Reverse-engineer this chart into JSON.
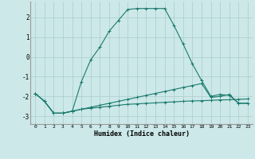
{
  "xlabel": "Humidex (Indice chaleur)",
  "background_color": "#cce8e8",
  "grid_color": "#aacccc",
  "line_color": "#1a7a6e",
  "x_ticks": [
    0,
    1,
    2,
    3,
    4,
    5,
    6,
    7,
    8,
    9,
    10,
    11,
    12,
    13,
    14,
    15,
    16,
    17,
    18,
    19,
    20,
    21,
    22,
    23
  ],
  "xlim": [
    -0.5,
    23.5
  ],
  "ylim": [
    -3.4,
    2.8
  ],
  "series1_x": [
    0,
    1,
    2,
    3,
    4,
    5,
    6,
    7,
    8,
    9,
    10,
    11,
    12,
    13,
    14,
    15,
    16,
    17,
    18,
    19,
    20,
    21,
    22,
    23
  ],
  "series1_y": [
    -1.85,
    -2.25,
    -2.85,
    -2.85,
    -2.75,
    -2.65,
    -2.6,
    -2.55,
    -2.5,
    -2.45,
    -2.4,
    -2.38,
    -2.35,
    -2.33,
    -2.3,
    -2.28,
    -2.25,
    -2.23,
    -2.22,
    -2.2,
    -2.18,
    -2.17,
    -2.15,
    -2.13
  ],
  "series2_x": [
    0,
    1,
    2,
    3,
    4,
    5,
    6,
    7,
    8,
    9,
    10,
    11,
    12,
    13,
    14,
    15,
    16,
    17,
    18,
    19,
    20,
    21,
    22,
    23
  ],
  "series2_y": [
    -1.85,
    -2.25,
    -2.85,
    -2.85,
    -2.75,
    -2.65,
    -2.55,
    -2.45,
    -2.35,
    -2.25,
    -2.15,
    -2.05,
    -1.95,
    -1.85,
    -1.75,
    -1.65,
    -1.55,
    -1.45,
    -1.35,
    -2.05,
    -2.0,
    -1.9,
    -2.35,
    -2.35
  ],
  "series3_x": [
    0,
    1,
    2,
    3,
    4,
    5,
    6,
    7,
    8,
    9,
    10,
    11,
    12,
    13,
    14,
    15,
    16,
    17,
    18,
    19,
    20,
    21,
    22,
    23
  ],
  "series3_y": [
    -1.85,
    -2.25,
    -2.85,
    -2.85,
    -2.75,
    -1.25,
    -0.15,
    0.5,
    1.3,
    1.85,
    2.4,
    2.45,
    2.45,
    2.45,
    2.45,
    1.6,
    0.65,
    -0.35,
    -1.2,
    -2.0,
    -1.9,
    -1.95,
    -2.35,
    -2.35
  ],
  "yticks": [
    -3,
    -2,
    -1,
    0,
    1,
    2
  ]
}
